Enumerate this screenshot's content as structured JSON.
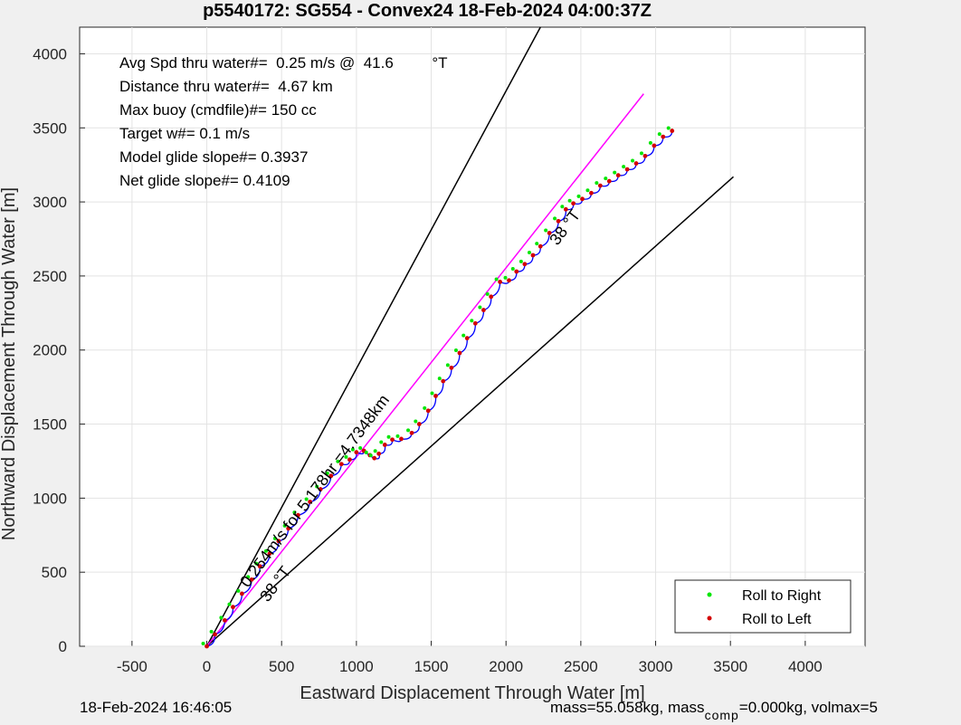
{
  "chart_data": {
    "type": "line",
    "title": "p5540172: SG554 - Convex24 18-Feb-2024 04:00:37Z",
    "xlabel": "Eastward Displacement Through Water [m]",
    "ylabel": "Northward Displacement Through Water [m]",
    "xlim": [
      -850,
      4400
    ],
    "ylim": [
      0,
      4180
    ],
    "xticks": [
      -500,
      0,
      500,
      1000,
      1500,
      2000,
      2500,
      3000,
      3500,
      4000
    ],
    "yticks": [
      0,
      500,
      1000,
      1500,
      2000,
      2500,
      3000,
      3500,
      4000
    ],
    "grid": true,
    "legend_position": "bottom-right",
    "colors": {
      "track": "#0000ff",
      "model_line": "#ff00ff",
      "bounds": "#000000",
      "roll_right": "#00e600",
      "roll_left": "#d40000",
      "background": "#f0f0f0",
      "axes_bg": "#ffffff"
    },
    "stats_text": [
      "Avg Spd thru water#=  0.25 m/s @  41.6         °T",
      "Distance thru water#=  4.67 km",
      "Max buoy (cmdfile)#= 150 cc",
      "Target w#= 0.1 m/s",
      "Model glide slope#= 0.3937",
      "Net glide slope#= 0.4109"
    ],
    "annotations": {
      "along_track": "0.254m/s for 5.178hr =4.7348km",
      "heading_upper": "38 °T",
      "heading_lower": "38 °T"
    },
    "series": [
      {
        "name": "Roll to Right",
        "role": "legend",
        "marker_color": "#00e600"
      },
      {
        "name": "Roll to Left",
        "role": "legend",
        "marker_color": "#d40000"
      }
    ],
    "track_points": [
      [
        0,
        0
      ],
      [
        55,
        80
      ],
      [
        120,
        175
      ],
      [
        175,
        265
      ],
      [
        235,
        355
      ],
      [
        300,
        450
      ],
      [
        355,
        540
      ],
      [
        420,
        625
      ],
      [
        480,
        710
      ],
      [
        545,
        795
      ],
      [
        610,
        885
      ],
      [
        690,
        975
      ],
      [
        760,
        1060
      ],
      [
        830,
        1150
      ],
      [
        900,
        1230
      ],
      [
        955,
        1260
      ],
      [
        1000,
        1310
      ],
      [
        1050,
        1320
      ],
      [
        1090,
        1290
      ],
      [
        1120,
        1270
      ],
      [
        1150,
        1300
      ],
      [
        1190,
        1360
      ],
      [
        1240,
        1395
      ],
      [
        1300,
        1400
      ],
      [
        1370,
        1440
      ],
      [
        1420,
        1500
      ],
      [
        1480,
        1590
      ],
      [
        1530,
        1690
      ],
      [
        1580,
        1790
      ],
      [
        1635,
        1880
      ],
      [
        1690,
        1980
      ],
      [
        1740,
        2080
      ],
      [
        1795,
        2180
      ],
      [
        1850,
        2270
      ],
      [
        1900,
        2360
      ],
      [
        1960,
        2460
      ],
      [
        2020,
        2470
      ],
      [
        2070,
        2530
      ],
      [
        2125,
        2580
      ],
      [
        2180,
        2640
      ],
      [
        2230,
        2700
      ],
      [
        2290,
        2790
      ],
      [
        2350,
        2870
      ],
      [
        2400,
        2950
      ],
      [
        2450,
        2990
      ],
      [
        2510,
        3020
      ],
      [
        2570,
        3060
      ],
      [
        2630,
        3110
      ],
      [
        2690,
        3140
      ],
      [
        2750,
        3180
      ],
      [
        2810,
        3220
      ],
      [
        2870,
        3260
      ],
      [
        2930,
        3310
      ],
      [
        2990,
        3380
      ],
      [
        3050,
        3440
      ],
      [
        3110,
        3480
      ]
    ],
    "model_line": [
      [
        0,
        0
      ],
      [
        2920,
        3730
      ]
    ],
    "bound_upper": [
      [
        0,
        0
      ],
      [
        2230,
        4180
      ]
    ],
    "bound_lower": [
      [
        0,
        0
      ],
      [
        3520,
        3170
      ]
    ]
  },
  "footer": {
    "timestamp": "18-Feb-2024 16:46:05",
    "mass_text": "mass=55.058kg, mass",
    "mass_sub": "comp",
    "mass_rest": "=0.000kg, volmax=5"
  }
}
